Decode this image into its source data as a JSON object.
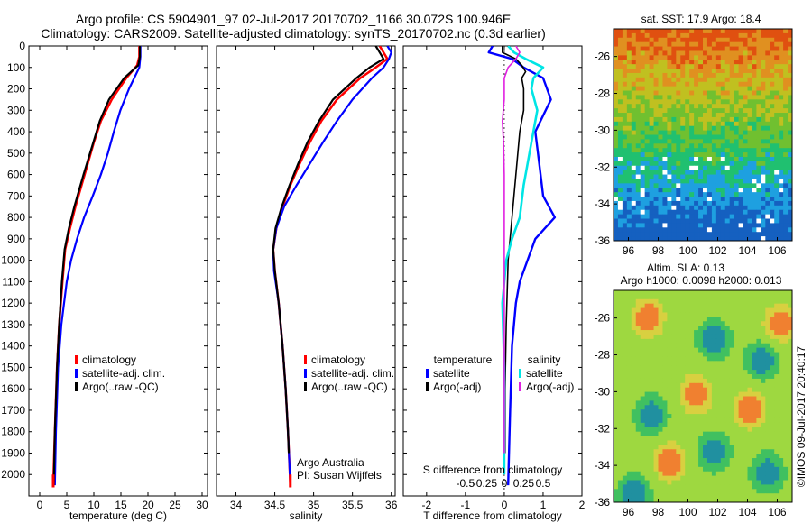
{
  "title_line1": "Argo profile: CS 5904901_97 02-Jul-2017 20170702_1166 30.072S 100.946E",
  "title_line2": "Climatology: CARS2009. Satellite-adjusted climatology: synTS_20170702.nc (0.3d earlier)",
  "colors": {
    "climatology": "#ff0000",
    "satellite": "#0000ff",
    "argo": "#000000",
    "sal_satellite": "#00e5e5",
    "sal_argo": "#e020e0"
  },
  "chart_data": [
    {
      "type": "line",
      "id": "temperature",
      "xlabel": "temperature (deg C)",
      "ylabel": "",
      "xlim": [
        -2,
        31
      ],
      "ylim": [
        2100,
        0
      ],
      "xticks": [
        0,
        5,
        10,
        15,
        20,
        25,
        30
      ],
      "yticks": [
        0,
        100,
        200,
        300,
        400,
        500,
        600,
        700,
        800,
        900,
        1000,
        1100,
        1200,
        1300,
        1400,
        1500,
        1600,
        1700,
        1800,
        1900,
        2000
      ],
      "legend": [
        "climatology",
        "satellite-adj. clim.",
        "Argo(..raw -QC)"
      ],
      "series": [
        {
          "name": "climatology",
          "depth": [
            0,
            50,
            90,
            150,
            250,
            350,
            450,
            600,
            750,
            850,
            950,
            1100,
            1300,
            1500,
            1800,
            2050
          ],
          "values": [
            18.4,
            18.4,
            18.0,
            16.0,
            13.3,
            11.3,
            10.0,
            8.3,
            6.6,
            5.6,
            4.7,
            4.2,
            3.6,
            3.2,
            2.8,
            2.5
          ]
        },
        {
          "name": "satellite-adj. clim.",
          "depth": [
            0,
            50,
            100,
            200,
            300,
            400,
            500,
            600,
            700,
            800,
            900,
            1000,
            1100,
            1300,
            1500,
            1800,
            2050
          ],
          "values": [
            18.6,
            18.6,
            18.4,
            16.5,
            14.9,
            13.7,
            12.6,
            11.3,
            9.8,
            8.2,
            6.9,
            5.8,
            5.0,
            4.0,
            3.4,
            3.0,
            2.8
          ]
        },
        {
          "name": "Argo(..raw -QC)",
          "depth": [
            0,
            50,
            90,
            150,
            250,
            350,
            450,
            600,
            750,
            850,
            950,
            1100,
            1300,
            1500,
            1800,
            2050
          ],
          "values": [
            18.5,
            18.5,
            18.2,
            15.6,
            12.8,
            11.1,
            9.9,
            8.1,
            6.4,
            5.4,
            4.6,
            4.1,
            3.6,
            3.2,
            2.8,
            2.6
          ]
        }
      ]
    },
    {
      "type": "line",
      "id": "salinity",
      "xlabel": "salinity",
      "ylabel": "",
      "xlim": [
        33.75,
        36.05
      ],
      "ylim": [
        2100,
        0
      ],
      "xticks": [
        34,
        34.5,
        35,
        35.5,
        36
      ],
      "legend": [
        "climatology",
        "satellite-adj. clim.",
        "Argo(..raw -QC)"
      ],
      "annotation": [
        "Argo Australia",
        "PI: Susan Wijffels"
      ],
      "series": [
        {
          "name": "climatology",
          "depth": [
            0,
            30,
            60,
            100,
            150,
            250,
            350,
            450,
            550,
            650,
            750,
            850,
            950,
            1050,
            1200,
            1400,
            1600,
            1800,
            2050
          ],
          "values": [
            35.85,
            35.9,
            35.95,
            35.8,
            35.6,
            35.3,
            35.1,
            34.95,
            34.82,
            34.7,
            34.6,
            34.52,
            34.48,
            34.5,
            34.55,
            34.6,
            34.64,
            34.67,
            34.7
          ]
        },
        {
          "name": "satellite-adj. clim.",
          "depth": [
            0,
            30,
            60,
            100,
            150,
            250,
            350,
            450,
            550,
            650,
            750,
            850,
            950,
            1050,
            1200,
            1400,
            1600,
            1800,
            2050
          ],
          "values": [
            35.95,
            36.0,
            35.97,
            35.9,
            35.75,
            35.5,
            35.3,
            35.12,
            34.95,
            34.78,
            34.62,
            34.52,
            34.48,
            34.49,
            34.55,
            34.6,
            34.64,
            34.67,
            34.7
          ]
        },
        {
          "name": "Argo(..raw -QC)",
          "depth": [
            0,
            30,
            60,
            100,
            150,
            250,
            350,
            450,
            550,
            650,
            750,
            850,
            950,
            1050,
            1200,
            1400,
            1600,
            1800,
            1900
          ],
          "values": [
            35.8,
            35.85,
            35.9,
            35.72,
            35.55,
            35.25,
            35.07,
            34.92,
            34.8,
            34.69,
            34.59,
            34.51,
            34.48,
            34.5,
            34.55,
            34.6,
            34.64,
            34.67,
            34.68
          ]
        }
      ]
    },
    {
      "type": "line",
      "id": "differences",
      "xlabel": "T difference from climatology",
      "xlabel_top": "S difference from climatology",
      "xlim": [
        -2.6,
        2.0
      ],
      "ylim": [
        2100,
        0
      ],
      "xticks": [
        -2,
        -1,
        0,
        1,
        2
      ],
      "xticks_top": [
        -0.5,
        -0.25,
        0,
        0.25,
        0.5
      ],
      "legend_titles": [
        "temperature",
        "salinity"
      ],
      "legend": [
        "satellite",
        "Argo(-adj)",
        "satellite",
        "Argo(-adj)"
      ],
      "series": [
        {
          "name": "temperature satellite",
          "depth": [
            0,
            30,
            60,
            100,
            150,
            250,
            400,
            550,
            700,
            800,
            900,
            1000,
            1100,
            1200,
            1400,
            1700,
            2050
          ],
          "values": [
            -0.3,
            -0.4,
            0.2,
            0.5,
            1.0,
            1.2,
            0.8,
            0.9,
            1.0,
            1.3,
            0.8,
            0.6,
            0.4,
            0.3,
            0.2,
            0.15,
            0.1
          ]
        },
        {
          "name": "temperature Argo(-adj)",
          "depth": [
            0,
            30,
            60,
            90,
            120,
            150,
            200,
            300,
            400,
            600,
            800,
            1000,
            1300,
            1600,
            1900
          ],
          "values": [
            -0.05,
            -0.05,
            0.3,
            0.45,
            0.55,
            0.45,
            0.5,
            0.5,
            0.4,
            0.3,
            0.2,
            0.1,
            0.05,
            0.02,
            0.02
          ]
        },
        {
          "name": "salinity satellite",
          "depth": [
            0,
            30,
            60,
            100,
            150,
            200,
            300,
            450,
            550,
            650,
            800,
            900,
            1000,
            1200,
            1500,
            1800,
            2000
          ],
          "values": [
            0.1,
            0.25,
            0.55,
            1.0,
            0.75,
            0.7,
            0.85,
            0.7,
            0.6,
            0.5,
            0.4,
            0.2,
            0.05,
            -0.05,
            0.0,
            0.0,
            0.0
          ]
        },
        {
          "name": "salinity Argo(-adj)",
          "depth": [
            0,
            30,
            60,
            100,
            150,
            250,
            350,
            450,
            600,
            800,
            1000,
            1200,
            1500,
            1800,
            1900
          ],
          "values": [
            0.3,
            0.4,
            0.3,
            0.1,
            0.0,
            0.0,
            -0.05,
            -0.02,
            0.0,
            0.0,
            0.0,
            0.0,
            0.0,
            0.0,
            0.0
          ]
        }
      ]
    },
    {
      "type": "heatmap",
      "id": "sst-map",
      "title": "sat. SST: 17.9 Argo: 18.4",
      "xlim": [
        95,
        107
      ],
      "ylim": [
        -36,
        -24.5
      ],
      "xticks": [
        96,
        98,
        100,
        102,
        104,
        106
      ],
      "yticks": [
        -26,
        -28,
        -30,
        -32,
        -34,
        -36
      ]
    },
    {
      "type": "heatmap",
      "id": "sla-map",
      "title_line1": "Altim. SLA: 0.13",
      "title_line2": "Argo h1000: 0.0098 h2000: 0.013",
      "xlim": [
        95,
        107
      ],
      "ylim": [
        -36,
        -24.5
      ],
      "xticks": [
        96,
        98,
        100,
        102,
        104,
        106
      ],
      "yticks": [
        -26,
        -28,
        -30,
        -32,
        -34,
        -36
      ]
    }
  ],
  "credit": "©IMOS 09-Jul-2017 20:40:17"
}
